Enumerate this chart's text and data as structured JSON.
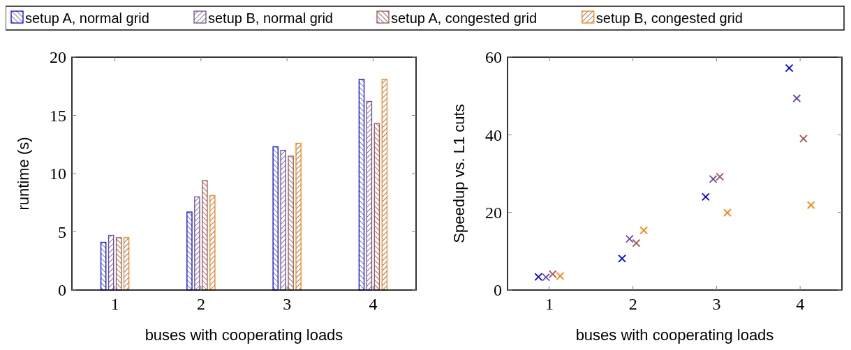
{
  "chart_data": [
    {
      "type": "bar",
      "categories": [
        "1",
        "2",
        "3",
        "4"
      ],
      "xlabel": "buses with cooperating loads",
      "ylabel": "runtime (s)",
      "ylim": [
        0,
        20
      ],
      "yticks": [
        0,
        5,
        10,
        15,
        20
      ],
      "legend": "top",
      "grid": false,
      "series": [
        {
          "name": "setup A, normal grid",
          "color": "#0000ff",
          "values": [
            4.1,
            6.7,
            12.3,
            18.1
          ]
        },
        {
          "name": "setup B, normal grid",
          "color": "#6a4aa8",
          "values": [
            4.7,
            8.0,
            12.0,
            16.2
          ]
        },
        {
          "name": "setup A, congested grid",
          "color": "#a8504f",
          "values": [
            4.5,
            9.4,
            11.5,
            14.3
          ]
        },
        {
          "name": "setup B, congested grid",
          "color": "#ff8000",
          "values": [
            4.5,
            8.1,
            12.6,
            18.1
          ]
        }
      ]
    },
    {
      "type": "scatter",
      "xlabel": "buses with cooperating loads",
      "ylabel": "Speedup vs. L1 cuts",
      "xlim": [
        0.5,
        4.5
      ],
      "xticks": [
        1,
        2,
        3,
        4
      ],
      "ylim": [
        0,
        60
      ],
      "yticks": [
        0,
        20,
        40,
        60
      ],
      "marker": "cross",
      "grid": false,
      "series": [
        {
          "color": "#0000ff",
          "x": [
            0.87,
            1.87,
            2.87,
            3.87
          ],
          "values": [
            3.4,
            8.1,
            24.0,
            57.2
          ]
        },
        {
          "color": "#6a4aa8",
          "x": [
            0.96,
            1.96,
            2.96,
            3.96
          ],
          "values": [
            3.3,
            13.2,
            28.6,
            49.4
          ]
        },
        {
          "color": "#a8504f",
          "x": [
            1.04,
            2.04,
            3.04,
            4.04
          ],
          "values": [
            4.1,
            12.1,
            29.2,
            39.0
          ]
        },
        {
          "color": "#ff8000",
          "x": [
            1.13,
            2.13,
            3.13,
            4.13
          ],
          "values": [
            3.6,
            15.4,
            19.9,
            21.9
          ]
        }
      ]
    }
  ]
}
